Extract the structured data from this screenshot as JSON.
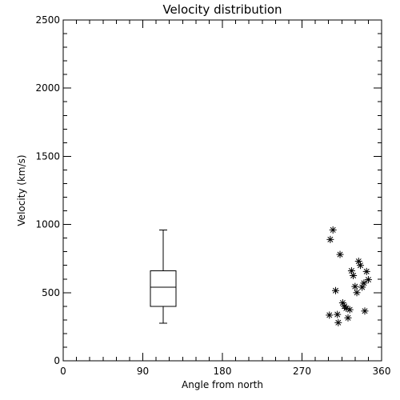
{
  "chart_data": {
    "type": "scatter",
    "title": "Velocity distribution",
    "xlabel": "Angle from north",
    "ylabel": "Velocity (km/s)",
    "xlim": [
      0,
      360
    ],
    "ylim": [
      0,
      2500
    ],
    "x_ticks": [
      0,
      90,
      180,
      270,
      360
    ],
    "y_ticks": [
      0,
      500,
      1000,
      1500,
      2000,
      2500
    ],
    "grid": false,
    "boxplot": {
      "x": 113,
      "whisker_low": 275,
      "q1": 400,
      "median": 540,
      "q3": 660,
      "whisker_high": 960
    },
    "points": [
      {
        "x": 302,
        "y": 890
      },
      {
        "x": 305,
        "y": 960
      },
      {
        "x": 301,
        "y": 335
      },
      {
        "x": 308,
        "y": 515
      },
      {
        "x": 310,
        "y": 340
      },
      {
        "x": 311,
        "y": 280
      },
      {
        "x": 313,
        "y": 780
      },
      {
        "x": 316,
        "y": 425
      },
      {
        "x": 318,
        "y": 400
      },
      {
        "x": 320,
        "y": 385
      },
      {
        "x": 322,
        "y": 315
      },
      {
        "x": 324,
        "y": 375
      },
      {
        "x": 326,
        "y": 660
      },
      {
        "x": 328,
        "y": 625
      },
      {
        "x": 330,
        "y": 545
      },
      {
        "x": 332,
        "y": 500
      },
      {
        "x": 334,
        "y": 730
      },
      {
        "x": 336,
        "y": 700
      },
      {
        "x": 338,
        "y": 540
      },
      {
        "x": 340,
        "y": 570
      },
      {
        "x": 341,
        "y": 365
      },
      {
        "x": 343,
        "y": 655
      },
      {
        "x": 345,
        "y": 595
      }
    ]
  }
}
